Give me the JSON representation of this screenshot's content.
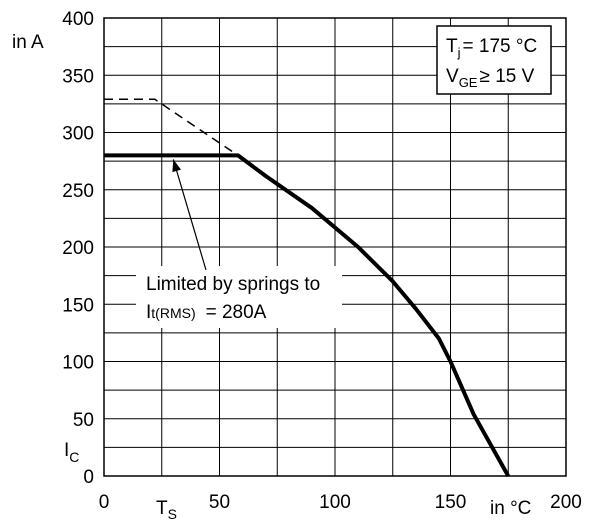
{
  "chart_data": {
    "type": "line",
    "xlim": [
      0,
      200
    ],
    "ylim": [
      0,
      400
    ],
    "x_ticks": [
      0,
      50,
      100,
      150,
      200
    ],
    "y_ticks": [
      0,
      50,
      100,
      150,
      200,
      250,
      300,
      350,
      400
    ],
    "x_minor_grid_step": 25,
    "y_minor_grid_step": 25,
    "grid": true,
    "ylabel_unit": "in A",
    "ylabel_symbol": "I",
    "ylabel_symbol_sub": "C",
    "xlabel_unit": "in °C",
    "x_marker_label": "T",
    "x_marker_sub": "S",
    "x_marker_value": 25,
    "series": [
      {
        "style": "solid",
        "x": [
          0,
          58,
          70,
          90,
          110,
          125,
          135,
          145,
          150,
          160,
          175
        ],
        "y": [
          280,
          280,
          262,
          234,
          200,
          170,
          146,
          120,
          100,
          54,
          0
        ]
      },
      {
        "style": "dashed",
        "x": [
          0,
          22,
          58
        ],
        "y": [
          329,
          329,
          280
        ]
      }
    ],
    "condition_box": {
      "line1": {
        "main": "T",
        "sub": "j",
        "rest": "= 175 °C"
      },
      "line2": {
        "main": "V",
        "sub": "GE",
        "rest": "≥ 15 V"
      }
    },
    "annotation": {
      "line1": "Limited by springs to",
      "line2_main": "I",
      "line2_sub": "t(RMS)",
      "line2_rest": "= 280A",
      "arrow_target": {
        "x": 30,
        "y": 280
      }
    }
  }
}
